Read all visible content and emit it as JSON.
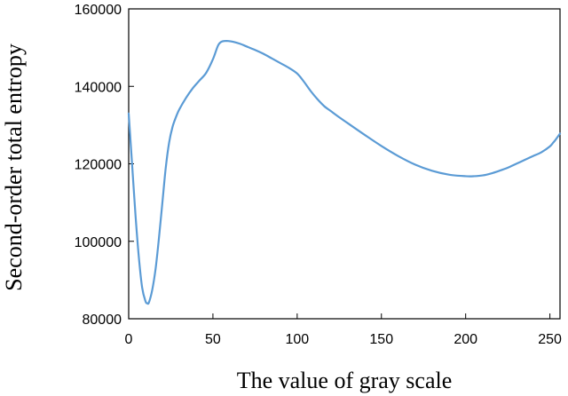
{
  "chart_data": {
    "type": "line",
    "title": "",
    "xlabel": "The value of gray scale",
    "ylabel": "Second-order total entropy",
    "xlim": [
      0,
      256
    ],
    "ylim": [
      80000,
      160000
    ],
    "xticks": [
      0,
      50,
      100,
      150,
      200,
      250
    ],
    "yticks": [
      80000,
      100000,
      120000,
      140000,
      160000
    ],
    "xtick_labels": [
      "0",
      "50",
      "100",
      "150",
      "200",
      "250"
    ],
    "ytick_labels": [
      "80000",
      "100000",
      "120000",
      "140000",
      "160000"
    ],
    "grid": false,
    "legend": "none",
    "series": [
      {
        "color": "#5b9bd5",
        "x": [
          0,
          2,
          4,
          6,
          8,
          10,
          11,
          12,
          14,
          16,
          18,
          20,
          22,
          24,
          26,
          28,
          30,
          34,
          38,
          42,
          46,
          50,
          53,
          55,
          57,
          59,
          62,
          66,
          70,
          75,
          80,
          85,
          90,
          95,
          100,
          104,
          108,
          112,
          116,
          120,
          125,
          130,
          140,
          150,
          160,
          170,
          180,
          190,
          200,
          205,
          210,
          215,
          220,
          225,
          230,
          235,
          240,
          245,
          250,
          252,
          253,
          254,
          255,
          256
        ],
        "y": [
          133000,
          120000,
          107000,
          96000,
          88000,
          84500,
          84000,
          84200,
          87500,
          93000,
          101000,
          110000,
          119000,
          125500,
          129500,
          132000,
          134000,
          137000,
          139500,
          141500,
          143500,
          147000,
          150500,
          151500,
          151700,
          151700,
          151500,
          151000,
          150300,
          149400,
          148400,
          147200,
          146000,
          144800,
          143300,
          141200,
          138800,
          136700,
          134900,
          133600,
          132000,
          130500,
          127500,
          124600,
          122000,
          119800,
          118200,
          117200,
          116800,
          116800,
          117000,
          117500,
          118200,
          119000,
          120000,
          121000,
          122000,
          123000,
          124500,
          125500,
          126000,
          126600,
          127200,
          127800
        ]
      }
    ]
  }
}
